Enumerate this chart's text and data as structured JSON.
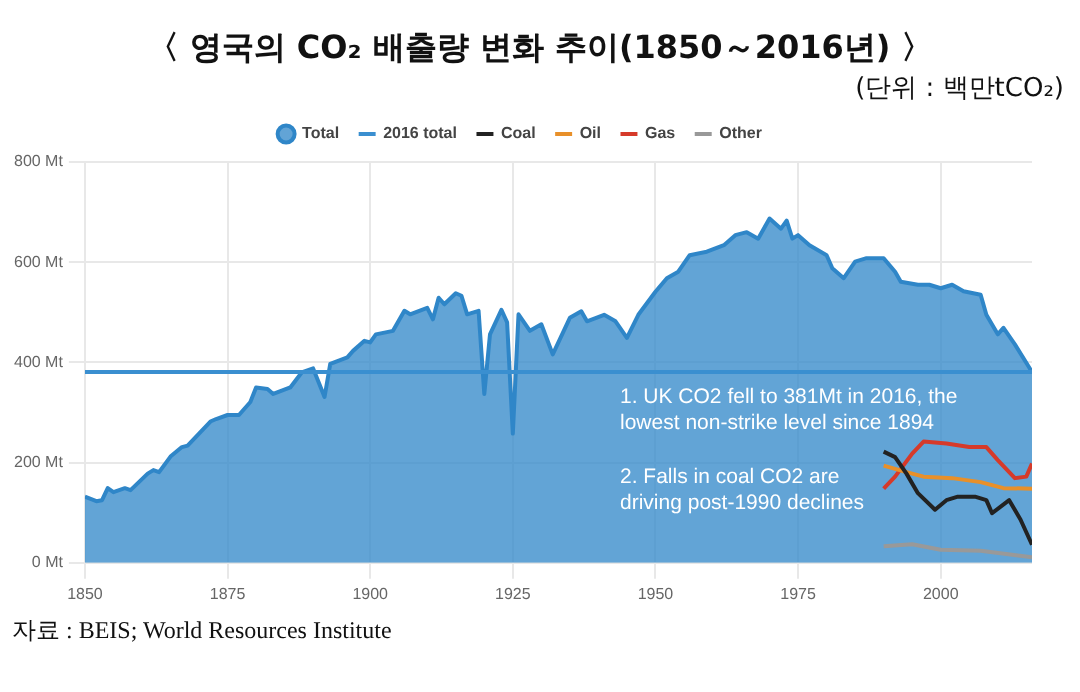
{
  "chart_data": {
    "type": "area",
    "title": "〈 영국의 CO₂ 배출량 변화 추이(1850～2016년) 〉",
    "subtitle": "(단위 : 백만tCO₂)",
    "annotations": [
      "1. UK CO2 fell to 381Mt in 2016, the lowest non-strike level since 1894",
      "2. Falls in coal CO2 are driving post-1990 declines",
      "자료 : BEIS; World Resources Institute"
    ],
    "xlim": [
      1850,
      2016
    ],
    "xticks": [
      1850,
      1875,
      1900,
      1925,
      1950,
      1975,
      2000
    ],
    "ylim": [
      0,
      800
    ],
    "yticks": [
      {
        "value": 0,
        "label": "0 Mt"
      },
      {
        "value": 200,
        "label": "200 Mt"
      },
      {
        "value": 400,
        "label": "400 Mt"
      },
      {
        "value": 600,
        "label": "600 Mt"
      },
      {
        "value": 800,
        "label": "800 Mt"
      }
    ],
    "grid": true,
    "legend": "top",
    "marker": "none",
    "line_style": "solid",
    "series": [
      {
        "name": "Total",
        "color": "#2f86c8",
        "x": [
          1850,
          1852,
          1853,
          1854,
          1855,
          1857,
          1858,
          1861,
          1862,
          1863,
          1865,
          1867,
          1868,
          1870,
          1872,
          1873,
          1875,
          1877,
          1879,
          1880,
          1882,
          1883,
          1886,
          1888,
          1890,
          1892,
          1893,
          1896,
          1897,
          1899,
          1900,
          1901,
          1904,
          1906,
          1907,
          1910,
          1911,
          1912,
          1913,
          1915,
          1916,
          1917,
          1919,
          1920,
          1921,
          1923,
          1924,
          1925,
          1926,
          1928,
          1930,
          1932,
          1935,
          1937,
          1938,
          1941,
          1943,
          1945,
          1947,
          1950,
          1952,
          1954,
          1956,
          1959,
          1962,
          1964,
          1966,
          1968,
          1970,
          1972,
          1973,
          1974,
          1975,
          1977,
          1980,
          1981,
          1983,
          1985,
          1987,
          1990,
          1992,
          1993,
          1996,
          1998,
          2000,
          2002,
          2004,
          2007,
          2008,
          2010,
          2011,
          2013,
          2016
        ],
        "values": [
          132,
          123,
          125,
          149,
          141,
          149,
          145,
          178,
          185,
          181,
          212,
          231,
          234,
          258,
          282,
          287,
          295,
          295,
          321,
          350,
          347,
          337,
          350,
          380,
          388,
          331,
          397,
          410,
          423,
          443,
          440,
          456,
          463,
          503,
          496,
          509,
          486,
          529,
          516,
          538,
          533,
          496,
          503,
          337,
          456,
          505,
          480,
          258,
          496,
          463,
          476,
          416,
          489,
          502,
          482,
          495,
          482,
          449,
          495,
          541,
          568,
          581,
          614,
          621,
          634,
          654,
          660,
          647,
          687,
          667,
          683,
          647,
          654,
          634,
          614,
          588,
          568,
          601,
          608,
          608,
          581,
          561,
          555,
          555,
          548,
          555,
          542,
          535,
          495,
          456,
          469,
          436,
          381
        ]
      },
      {
        "name": "2016 total",
        "type": "line",
        "color": "#3a8fd0",
        "x": [
          1850,
          2016
        ],
        "values": [
          381,
          381
        ]
      },
      {
        "name": "Coal",
        "type": "line",
        "color": "#222222",
        "x": [
          1990,
          1992,
          1994,
          1996,
          1999,
          2001,
          2003,
          2006,
          2008,
          2009,
          2012,
          2014,
          2016
        ],
        "values": [
          222,
          211,
          178,
          139,
          106,
          125,
          132,
          132,
          125,
          99,
          125,
          86,
          36
        ]
      },
      {
        "name": "Oil",
        "type": "line",
        "color": "#e8902a",
        "x": [
          1990,
          1994,
          1997,
          2002,
          2007,
          2011,
          2016
        ],
        "values": [
          194,
          181,
          172,
          169,
          161,
          149,
          148
        ]
      },
      {
        "name": "Gas",
        "type": "line",
        "color": "#d63a2a",
        "x": [
          1990,
          1992,
          1995,
          1997,
          2001,
          2005,
          2008,
          2010,
          2013,
          2015,
          2016
        ],
        "values": [
          148,
          172,
          218,
          242,
          238,
          231,
          231,
          205,
          169,
          172,
          198
        ]
      },
      {
        "name": "Other",
        "type": "line",
        "color": "#999999",
        "x": [
          1990,
          1995,
          2000,
          2007,
          2016
        ],
        "values": [
          33,
          37,
          26,
          24,
          11
        ]
      }
    ]
  }
}
